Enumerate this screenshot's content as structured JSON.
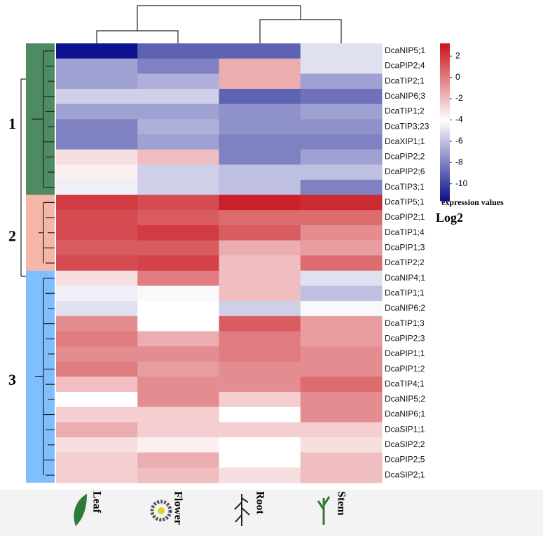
{
  "chart_data": {
    "type": "heatmap",
    "x_categories": [
      "Leaf",
      "Flower",
      "Root",
      "Stem"
    ],
    "y_categories": [
      "DcaNIP5;1",
      "DcaPIP2;4",
      "DcaTIP2;1",
      "DcaNIP6;3",
      "DcaTIP1;2",
      "DcaTIP3;23",
      "DcaXIP1;1",
      "DcaPIP2;2",
      "DcaPIP2;6",
      "DcaTIP3;1",
      "DcaTIP5;1",
      "DcaPIP2;1",
      "DcaTIP1;4",
      "DcaPIP1;3",
      "DcaTIP2;2",
      "DcaNIP4;1",
      "DcaTIP1;1",
      "DcaNIP6;2",
      "DcaTIP1;3",
      "DcaPIP2;3",
      "DcaPIP1;1",
      "DcaPIP1;2",
      "DcaTIP4;1",
      "DcaNIP5;2",
      "DcaNIP6;1",
      "DcaSIP1;1",
      "DcaSIP2;2",
      "DcaPIP2;5",
      "DcaSIP2;1"
    ],
    "values": [
      [
        -11.5,
        -9,
        -9,
        -5
      ],
      [
        -7,
        -8,
        -1.5,
        -5
      ],
      [
        -7,
        -6.5,
        -1.5,
        -7
      ],
      [
        -5.5,
        -5.5,
        -9,
        -8.5
      ],
      [
        -7,
        -7,
        -7.5,
        -7
      ],
      [
        -8,
        -6.5,
        -7.5,
        -7.5
      ],
      [
        -8,
        -7,
        -8,
        -8
      ],
      [
        -3,
        -2,
        -8,
        -7
      ],
      [
        -3.5,
        -5.5,
        -6,
        -6
      ],
      [
        -4.5,
        -5.5,
        -6,
        -8
      ],
      [
        2,
        1.5,
        2.8,
        2.5
      ],
      [
        1.5,
        1,
        0.5,
        0.5
      ],
      [
        1.5,
        2,
        1,
        -0.5
      ],
      [
        1,
        1,
        -1.5,
        -1
      ],
      [
        1.5,
        1.8,
        -2,
        0.5
      ],
      [
        -3,
        0,
        -2,
        -5
      ],
      [
        -4.5,
        -4.2,
        -2,
        -6
      ],
      [
        -5,
        -4,
        -5.5,
        -4.2
      ],
      [
        -0.5,
        -4,
        1,
        -1
      ],
      [
        0,
        -1.5,
        0,
        -1
      ],
      [
        -0.5,
        -0.5,
        0,
        -0.5
      ],
      [
        0,
        -1,
        -0.5,
        -0.5
      ],
      [
        -2,
        -0.5,
        -0.5,
        0.5
      ],
      [
        -4,
        -0.5,
        -2.5,
        -0.5
      ],
      [
        -2.5,
        -2.5,
        -4,
        -0.5
      ],
      [
        -1.5,
        -2.5,
        -2.5,
        -2.5
      ],
      [
        -3,
        -3.5,
        -4,
        -3
      ],
      [
        -2.5,
        -1.5,
        -4,
        -2
      ],
      [
        -2.5,
        -2,
        -3,
        -2
      ]
    ],
    "zlim": [
      -11.6,
      3.2
    ],
    "zmid": -4,
    "colors": [
      "#0b108c",
      "#ffffff",
      "#c8141c"
    ],
    "colorbar_ticks": [
      2,
      0,
      -2,
      -4,
      -6,
      -8,
      -10
    ],
    "colorbar_label": "expression values",
    "colorbar_unit": "Log2",
    "clusters": [
      {
        "label": "1",
        "size": 10,
        "color": "#4e8a62"
      },
      {
        "label": "2",
        "size": 5,
        "color": "#f5b6a8"
      },
      {
        "label": "3",
        "size": 14,
        "color": "#7fbfff"
      }
    ]
  }
}
